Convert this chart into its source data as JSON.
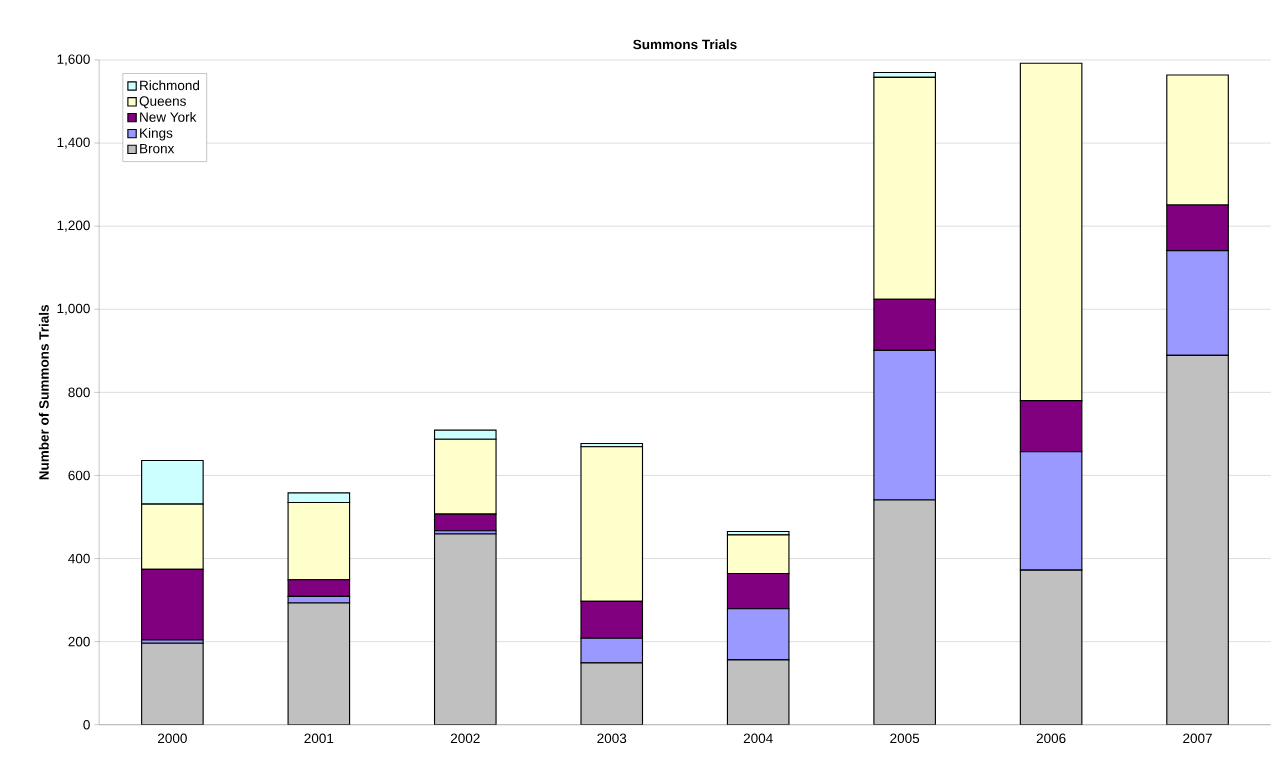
{
  "chart_data": {
    "type": "bar",
    "title": "Summons Trials",
    "ylabel": "Number of Summons Trials",
    "stacked": true,
    "grid": "y",
    "legend": "top left",
    "categories": [
      "2000",
      "2001",
      "2002",
      "2003",
      "2004",
      "2005",
      "2006",
      "2007"
    ],
    "ylim": [
      0,
      1600
    ],
    "yticks": [
      0,
      200,
      400,
      600,
      800,
      {
        "value": 1000,
        "label": "1,000"
      },
      {
        "value": 1200,
        "label": "1,200"
      },
      {
        "value": 1400,
        "label": "1,400"
      },
      {
        "value": 1600,
        "label": "1,600"
      }
    ],
    "series": [
      {
        "name": "Bronx",
        "color": "#c0c0c0",
        "values": [
          196,
          293,
          459,
          149,
          156,
          541,
          372,
          889
        ]
      },
      {
        "name": "Kings",
        "color": "#9999ff",
        "values": [
          8,
          16,
          8,
          59,
          123,
          360,
          285,
          252
        ]
      },
      {
        "name": "New York",
        "color": "#800080",
        "values": [
          170,
          40,
          40,
          89,
          85,
          123,
          123,
          110
        ]
      },
      {
        "name": "Queens",
        "color": "#ffffcc",
        "values": [
          157,
          186,
          180,
          372,
          93,
          534,
          812,
          313
        ]
      },
      {
        "name": "Richmond",
        "color": "#ccffff",
        "values": [
          105,
          23,
          22,
          8,
          8,
          12,
          0,
          0
        ]
      }
    ]
  }
}
